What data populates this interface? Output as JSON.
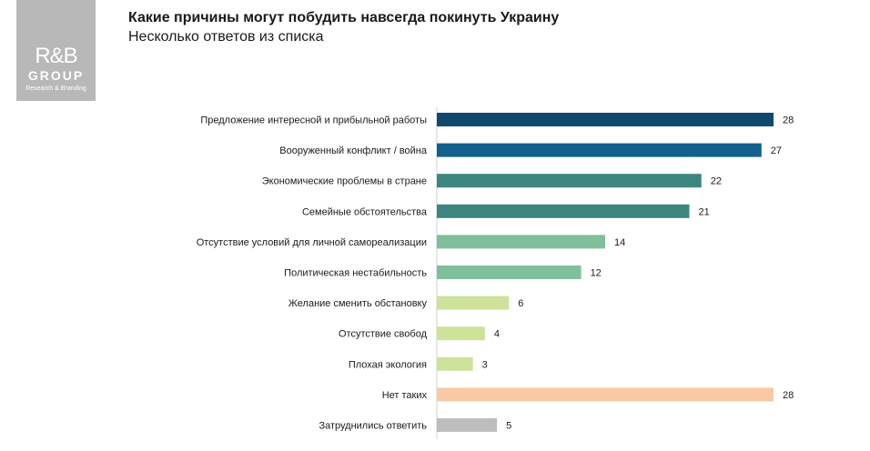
{
  "logo": {
    "mark": "R&B",
    "group": "GROUP",
    "tagline": "Research & Branding"
  },
  "chart_data": {
    "type": "bar",
    "orientation": "horizontal",
    "title": "Какие причины могут побудить навсегда покинуть Украину",
    "subtitle": "Несколько ответов из списка",
    "categories": [
      "Предложение интересной и прибыльной работы",
      "Вооруженный конфликт / война",
      "Экономические проблемы в стране",
      "Семейные обстоятельства",
      "Отсутствие условий для личной самореализации",
      "Политическая нестабильность",
      "Желание сменить обстановку",
      "Отсутствие свобод",
      "Плохая экология",
      "Нет таких",
      "Затруднились ответить"
    ],
    "values": [
      28,
      27,
      22,
      21,
      14,
      12,
      6,
      4,
      3,
      28,
      5
    ],
    "colors": [
      "#0f4a6e",
      "#135f8e",
      "#3b877f",
      "#3b877f",
      "#7fbf9a",
      "#7fbf9a",
      "#cde39a",
      "#cde39a",
      "#cde39a",
      "#f9c9a4",
      "#bdbdbd"
    ],
    "xlim": [
      0,
      28
    ],
    "grid": false,
    "legend": "none"
  }
}
